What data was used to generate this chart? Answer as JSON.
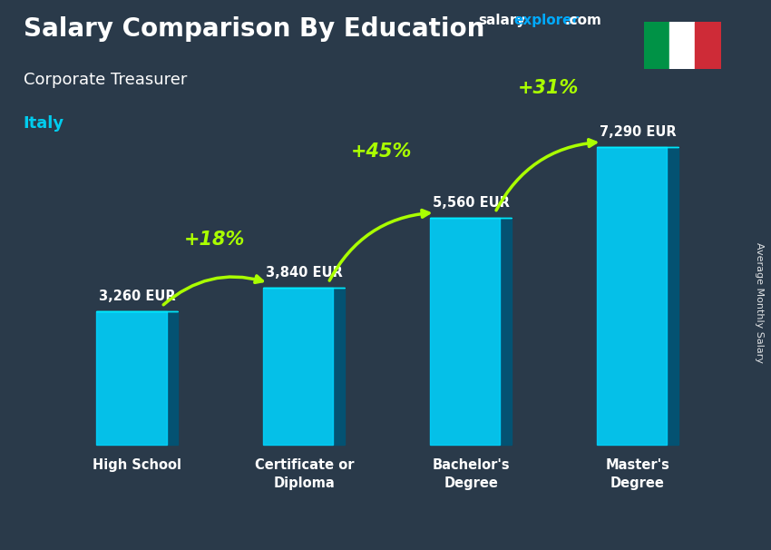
{
  "title": "Salary Comparison By Education",
  "subtitle": "Corporate Treasurer",
  "country": "Italy",
  "categories": [
    "High School",
    "Certificate or\nDiploma",
    "Bachelor's\nDegree",
    "Master's\nDegree"
  ],
  "values": [
    3260,
    3840,
    5560,
    7290
  ],
  "value_labels": [
    "3,260 EUR",
    "3,840 EUR",
    "5,560 EUR",
    "7,290 EUR"
  ],
  "pct_labels": [
    "+18%",
    "+45%",
    "+31%"
  ],
  "bar_color_face": "#00d4ff",
  "bar_color_top": "#00eeff",
  "bar_color_side": "#005577",
  "bg_color": "#2a3a4a",
  "text_color_white": "#ffffff",
  "text_color_cyan": "#00ccee",
  "text_color_green": "#aaff00",
  "ylabel": "Average Monthly Salary",
  "italy_flag_green": "#009246",
  "italy_flag_white": "#ffffff",
  "italy_flag_red": "#ce2b37",
  "ylim_max": 9000
}
